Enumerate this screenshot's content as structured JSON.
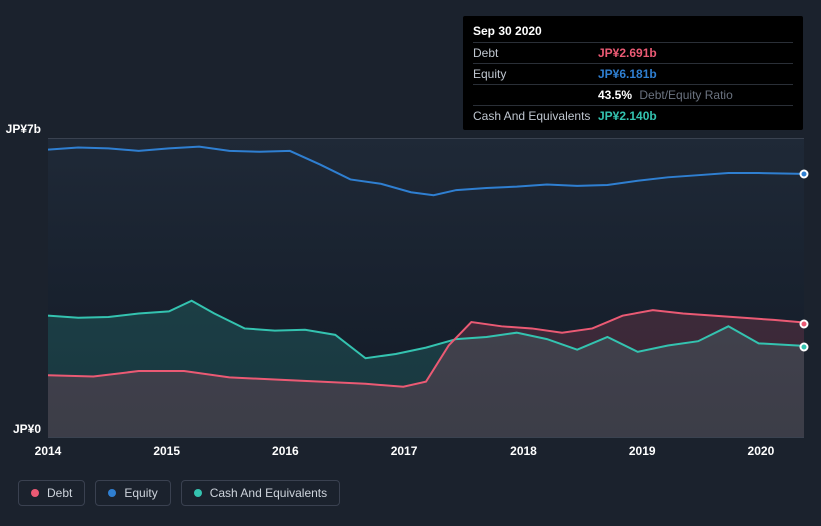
{
  "tooltip": {
    "date": "Sep 30 2020",
    "rows": [
      {
        "label": "Debt",
        "value": "JP¥2.691b",
        "color": "#eb5a74",
        "sub": ""
      },
      {
        "label": "Equity",
        "value": "JP¥6.181b",
        "color": "#2f7fd1",
        "sub": ""
      },
      {
        "label": "",
        "value": "43.5%",
        "color": "#ffffff",
        "sub": "Debt/Equity Ratio"
      },
      {
        "label": "Cash And Equivalents",
        "value": "JP¥2.140b",
        "color": "#34c3b0",
        "sub": ""
      }
    ]
  },
  "chart": {
    "background_top": "#1f2937",
    "background_bottom": "#121a26",
    "grid_color": "#3a4250",
    "y_max_label": "JP¥7b",
    "y_min_label": "JP¥0",
    "y_max": 7,
    "y_min": 0,
    "x_labels": [
      "2014",
      "2015",
      "2016",
      "2017",
      "2018",
      "2019",
      "2020"
    ],
    "x_positions_pct": [
      0,
      15.7,
      31.4,
      47.1,
      62.9,
      78.6,
      94.3
    ],
    "series": [
      {
        "name": "Equity",
        "color": "#2f7fd1",
        "fill_opacity": 0.0,
        "stroke_width": 2,
        "points": [
          [
            0,
            6.75
          ],
          [
            4,
            6.8
          ],
          [
            8,
            6.78
          ],
          [
            12,
            6.72
          ],
          [
            16,
            6.78
          ],
          [
            20,
            6.82
          ],
          [
            24,
            6.72
          ],
          [
            28,
            6.7
          ],
          [
            32,
            6.72
          ],
          [
            36,
            6.4
          ],
          [
            40,
            6.05
          ],
          [
            44,
            5.95
          ],
          [
            48,
            5.75
          ],
          [
            51,
            5.68
          ],
          [
            54,
            5.8
          ],
          [
            58,
            5.85
          ],
          [
            62,
            5.88
          ],
          [
            66,
            5.93
          ],
          [
            70,
            5.9
          ],
          [
            74,
            5.92
          ],
          [
            78,
            6.02
          ],
          [
            82,
            6.1
          ],
          [
            86,
            6.15
          ],
          [
            90,
            6.2
          ],
          [
            94,
            6.2
          ],
          [
            100,
            6.18
          ]
        ]
      },
      {
        "name": "Cash And Equivalents",
        "color": "#34c3b0",
        "fill_opacity": 0.18,
        "stroke_width": 2,
        "points": [
          [
            0,
            2.85
          ],
          [
            4,
            2.8
          ],
          [
            8,
            2.82
          ],
          [
            12,
            2.9
          ],
          [
            16,
            2.95
          ],
          [
            19,
            3.2
          ],
          [
            22,
            2.9
          ],
          [
            26,
            2.55
          ],
          [
            30,
            2.5
          ],
          [
            34,
            2.52
          ],
          [
            38,
            2.4
          ],
          [
            42,
            1.85
          ],
          [
            46,
            1.95
          ],
          [
            50,
            2.1
          ],
          [
            54,
            2.3
          ],
          [
            58,
            2.35
          ],
          [
            62,
            2.45
          ],
          [
            66,
            2.3
          ],
          [
            70,
            2.05
          ],
          [
            74,
            2.35
          ],
          [
            78,
            2.0
          ],
          [
            82,
            2.15
          ],
          [
            86,
            2.25
          ],
          [
            90,
            2.6
          ],
          [
            94,
            2.2
          ],
          [
            100,
            2.14
          ]
        ]
      },
      {
        "name": "Debt",
        "color": "#eb5a74",
        "fill_opacity": 0.18,
        "stroke_width": 2,
        "points": [
          [
            0,
            1.45
          ],
          [
            6,
            1.42
          ],
          [
            12,
            1.55
          ],
          [
            18,
            1.55
          ],
          [
            24,
            1.4
          ],
          [
            30,
            1.35
          ],
          [
            36,
            1.3
          ],
          [
            42,
            1.25
          ],
          [
            47,
            1.18
          ],
          [
            50,
            1.3
          ],
          [
            53,
            2.15
          ],
          [
            56,
            2.7
          ],
          [
            60,
            2.6
          ],
          [
            64,
            2.55
          ],
          [
            68,
            2.45
          ],
          [
            72,
            2.55
          ],
          [
            76,
            2.85
          ],
          [
            80,
            2.98
          ],
          [
            84,
            2.9
          ],
          [
            88,
            2.85
          ],
          [
            92,
            2.8
          ],
          [
            96,
            2.75
          ],
          [
            100,
            2.69
          ]
        ]
      }
    ]
  },
  "legend": [
    {
      "label": "Debt",
      "color": "#eb5a74"
    },
    {
      "label": "Equity",
      "color": "#2f7fd1"
    },
    {
      "label": "Cash And Equivalents",
      "color": "#34c3b0"
    }
  ]
}
